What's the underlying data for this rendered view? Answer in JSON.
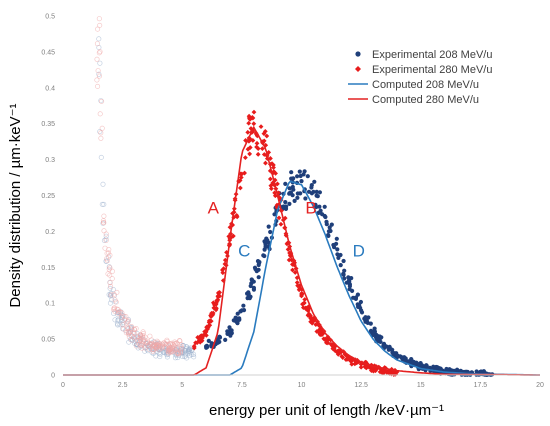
{
  "chart_data": {
    "type": "scatter",
    "xlabel": "energy per unit of length /keV·µm⁻¹",
    "ylabel": "Density distribution / µm·keV⁻¹",
    "xlim": [
      0,
      20
    ],
    "ylim": [
      0,
      0.5
    ],
    "x_ticks": [
      "0",
      "2.5",
      "5",
      "7.5",
      "10",
      "12.5",
      "15",
      "17.5",
      "20"
    ],
    "y_ticks": [
      "0",
      "0.05",
      "0.1",
      "0.15",
      "0.2",
      "0.25",
      "0.3",
      "0.35",
      "0.4",
      "0.45",
      "0.5"
    ],
    "grid": false,
    "legend_position": "top-right",
    "colors": {
      "exp208": "#1f3f7a",
      "exp280": "#e81c1c",
      "comp208": "#2a7bbf",
      "comp280": "#e42222",
      "faint208": "#9fb3cf",
      "faint280": "#f0a8a8"
    },
    "series": [
      {
        "name": "Experimental 208 MeV/u",
        "kind": "scatter",
        "marker": "circle",
        "color_key": "exp208",
        "x": [
          6.0,
          6.5,
          7.0,
          7.5,
          8.0,
          8.5,
          9.0,
          9.5,
          10.0,
          10.5,
          11.0,
          11.5,
          12.0,
          12.5,
          13.0,
          13.5,
          14.0,
          14.5,
          15.0,
          15.5,
          16.0,
          17.0,
          18.0
        ],
        "y": [
          0.04,
          0.045,
          0.06,
          0.09,
          0.13,
          0.18,
          0.23,
          0.26,
          0.27,
          0.255,
          0.22,
          0.175,
          0.13,
          0.09,
          0.06,
          0.04,
          0.027,
          0.018,
          0.012,
          0.008,
          0.005,
          0.002,
          0.001
        ]
      },
      {
        "name": "Experimental 280 MeV/u",
        "kind": "scatter",
        "marker": "diamond",
        "color_key": "exp280",
        "x": [
          5.5,
          6.0,
          6.5,
          7.0,
          7.5,
          7.8,
          8.0,
          8.5,
          9.0,
          9.5,
          10.0,
          10.5,
          11.0,
          11.5,
          12.0,
          12.5,
          13.0,
          13.5,
          14.0
        ],
        "y": [
          0.04,
          0.06,
          0.11,
          0.19,
          0.28,
          0.33,
          0.35,
          0.32,
          0.25,
          0.17,
          0.11,
          0.075,
          0.05,
          0.033,
          0.022,
          0.015,
          0.01,
          0.006,
          0.004
        ]
      },
      {
        "name": "Computed 208 MeV/u",
        "kind": "line",
        "color_key": "comp208",
        "x": [
          7.0,
          7.5,
          8.0,
          8.5,
          9.0,
          9.5,
          10.0,
          10.5,
          11.0,
          11.5,
          12.0,
          12.5,
          13.0,
          13.5,
          14.0,
          15.0,
          16.0,
          17.0,
          18.0,
          20.0
        ],
        "y": [
          0.0,
          0.01,
          0.06,
          0.15,
          0.23,
          0.27,
          0.265,
          0.235,
          0.195,
          0.15,
          0.11,
          0.075,
          0.05,
          0.033,
          0.021,
          0.009,
          0.004,
          0.002,
          0.001,
          0.0
        ]
      },
      {
        "name": "Computed 280 MeV/u",
        "kind": "line",
        "color_key": "comp280",
        "x": [
          0,
          5.5,
          6.0,
          6.5,
          7.0,
          7.5,
          8.0,
          8.5,
          9.0,
          9.5,
          10.0,
          10.5,
          11.0,
          11.5,
          12.0,
          12.5,
          13.0,
          14.0,
          15.0,
          16.0,
          20.0
        ],
        "y": [
          0.0,
          0.0,
          0.01,
          0.06,
          0.19,
          0.31,
          0.345,
          0.315,
          0.25,
          0.18,
          0.125,
          0.085,
          0.058,
          0.04,
          0.027,
          0.018,
          0.012,
          0.006,
          0.003,
          0.001,
          0.0
        ]
      }
    ],
    "background_points": [
      {
        "color_key": "faint208",
        "x": [
          1.5,
          1.6,
          1.7,
          1.8,
          2.0,
          2.2,
          2.5,
          2.8,
          3.0,
          3.5,
          4.0,
          4.5,
          5.0,
          5.5
        ],
        "y": [
          0.41,
          0.33,
          0.22,
          0.17,
          0.12,
          0.09,
          0.07,
          0.06,
          0.05,
          0.04,
          0.035,
          0.032,
          0.032,
          0.035
        ]
      },
      {
        "color_key": "faint280",
        "x": [
          1.4,
          1.5,
          1.6,
          1.7,
          1.8,
          2.0,
          2.3,
          2.6,
          3.0,
          3.5,
          4.0,
          4.5,
          5.0
        ],
        "y": [
          0.495,
          0.46,
          0.35,
          0.25,
          0.19,
          0.13,
          0.09,
          0.07,
          0.055,
          0.045,
          0.04,
          0.038,
          0.04
        ]
      }
    ],
    "annotations": [
      {
        "text": "A",
        "x": 6.3,
        "y": 0.225,
        "color_key": "comp280"
      },
      {
        "text": "B",
        "x": 10.4,
        "y": 0.225,
        "color_key": "comp280"
      },
      {
        "text": "C",
        "x": 7.6,
        "y": 0.165,
        "color_key": "comp208"
      },
      {
        "text": "D",
        "x": 12.4,
        "y": 0.165,
        "color_key": "comp208"
      }
    ]
  }
}
